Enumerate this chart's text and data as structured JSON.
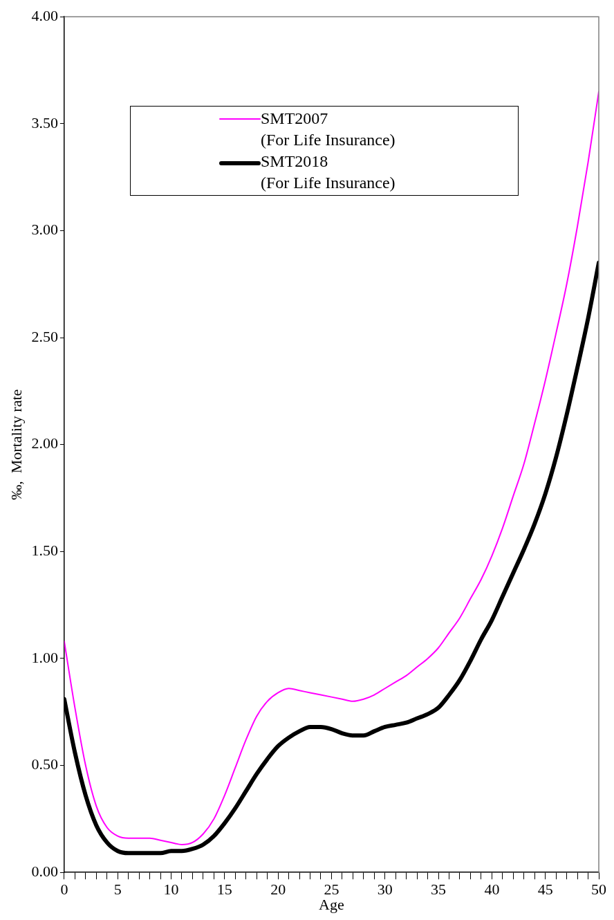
{
  "chart_data": {
    "type": "line",
    "xlabel": "Age",
    "ylabel": "‰,  Mortality rate",
    "xlim": [
      0,
      50
    ],
    "ylim": [
      0,
      4
    ],
    "xticks": [
      0,
      {
        "value": 1,
        "label": null
      },
      {
        "value": 2,
        "label": null
      },
      {
        "value": 3,
        "label": null
      },
      {
        "value": 4,
        "label": null
      },
      5,
      {
        "value": 6,
        "label": null
      },
      {
        "value": 7,
        "label": null
      },
      {
        "value": 8,
        "label": null
      },
      {
        "value": 9,
        "label": null
      },
      10,
      {
        "value": 11,
        "label": null
      },
      {
        "value": 12,
        "label": null
      },
      {
        "value": 13,
        "label": null
      },
      {
        "value": 14,
        "label": null
      },
      15,
      {
        "value": 16,
        "label": null
      },
      {
        "value": 17,
        "label": null
      },
      {
        "value": 18,
        "label": null
      },
      {
        "value": 19,
        "label": null
      },
      20,
      {
        "value": 21,
        "label": null
      },
      {
        "value": 22,
        "label": null
      },
      {
        "value": 23,
        "label": null
      },
      {
        "value": 24,
        "label": null
      },
      25,
      {
        "value": 26,
        "label": null
      },
      {
        "value": 27,
        "label": null
      },
      {
        "value": 28,
        "label": null
      },
      {
        "value": 29,
        "label": null
      },
      30,
      {
        "value": 31,
        "label": null
      },
      {
        "value": 32,
        "label": null
      },
      {
        "value": 33,
        "label": null
      },
      {
        "value": 34,
        "label": null
      },
      35,
      {
        "value": 36,
        "label": null
      },
      {
        "value": 37,
        "label": null
      },
      {
        "value": 38,
        "label": null
      },
      {
        "value": 39,
        "label": null
      },
      40,
      {
        "value": 41,
        "label": null
      },
      {
        "value": 42,
        "label": null
      },
      {
        "value": 43,
        "label": null
      },
      {
        "value": 44,
        "label": null
      },
      45,
      {
        "value": 46,
        "label": null
      },
      {
        "value": 47,
        "label": null
      },
      {
        "value": 48,
        "label": null
      },
      {
        "value": 49,
        "label": null
      },
      50
    ],
    "yticks": [
      {
        "value": 0,
        "label": "0.00"
      },
      {
        "value": 0.5,
        "label": "0.50"
      },
      {
        "value": 1,
        "label": "1.00"
      },
      {
        "value": 1.5,
        "label": "1.50"
      },
      {
        "value": 2,
        "label": "2.00"
      },
      {
        "value": 2.5,
        "label": "2.50"
      },
      {
        "value": 3,
        "label": "3.00"
      },
      {
        "value": 3.5,
        "label": "3.50"
      },
      {
        "value": 4,
        "label": "4.00"
      }
    ],
    "x": [
      0,
      1,
      2,
      3,
      4,
      5,
      6,
      7,
      8,
      9,
      10,
      11,
      12,
      13,
      14,
      15,
      16,
      17,
      18,
      19,
      20,
      21,
      22,
      23,
      24,
      25,
      26,
      27,
      28,
      29,
      30,
      31,
      32,
      33,
      34,
      35,
      36,
      37,
      38,
      39,
      40,
      41,
      42,
      43,
      44,
      45,
      46,
      47,
      48,
      49,
      50
    ],
    "grid": false,
    "legend": "top",
    "marker": "none",
    "line_style": "solid",
    "series": [
      {
        "name": "SMT2007\n(For Life Insurance)",
        "color": "#ff00ff",
        "values": [
          1.08,
          0.77,
          0.5,
          0.31,
          0.21,
          0.17,
          0.16,
          0.16,
          0.16,
          0.15,
          0.14,
          0.13,
          0.14,
          0.18,
          0.25,
          0.36,
          0.49,
          0.62,
          0.73,
          0.8,
          0.84,
          0.86,
          0.85,
          0.84,
          0.83,
          0.82,
          0.81,
          0.8,
          0.81,
          0.83,
          0.86,
          0.89,
          0.92,
          0.96,
          1.0,
          1.05,
          1.12,
          1.19,
          1.28,
          1.37,
          1.48,
          1.61,
          1.76,
          1.91,
          2.1,
          2.3,
          2.52,
          2.75,
          3.02,
          3.32,
          3.65
        ]
      },
      {
        "name": "SMT2018\n(For Life Insurance)",
        "color": "#000000",
        "values": [
          0.81,
          0.56,
          0.36,
          0.22,
          0.14,
          0.1,
          0.09,
          0.09,
          0.09,
          0.09,
          0.1,
          0.1,
          0.11,
          0.13,
          0.17,
          0.23,
          0.3,
          0.38,
          0.46,
          0.53,
          0.59,
          0.63,
          0.66,
          0.68,
          0.68,
          0.67,
          0.65,
          0.64,
          0.64,
          0.66,
          0.68,
          0.69,
          0.7,
          0.72,
          0.74,
          0.77,
          0.83,
          0.9,
          0.99,
          1.09,
          1.18,
          1.29,
          1.4,
          1.51,
          1.63,
          1.77,
          1.94,
          2.14,
          2.36,
          2.59,
          2.85
        ]
      }
    ]
  }
}
